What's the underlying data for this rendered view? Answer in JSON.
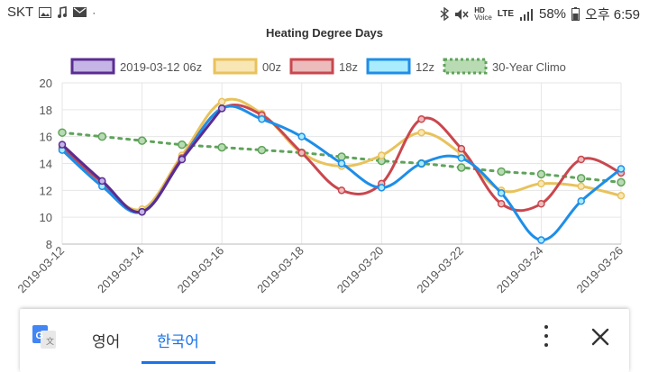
{
  "status_bar": {
    "carrier": "SKT",
    "battery": "58%",
    "time": "오후 6:59",
    "network": "LTE",
    "hd_label": "HD",
    "voice_label": "Voice"
  },
  "chart_data": {
    "type": "line",
    "title": "Heating Degree Days",
    "x_ticks": [
      "2019-03-12",
      "2019-03-14",
      "2019-03-16",
      "2019-03-18",
      "2019-03-20",
      "2019-03-22",
      "2019-03-24",
      "2019-03-26"
    ],
    "ylim": [
      8,
      20
    ],
    "y_ticks": [
      8,
      10,
      12,
      14,
      16,
      18,
      20
    ],
    "grid": true,
    "legend_position": "top",
    "x": [
      "2019-03-12",
      "2019-03-13",
      "2019-03-14",
      "2019-03-15",
      "2019-03-16",
      "2019-03-17",
      "2019-03-18",
      "2019-03-19",
      "2019-03-20",
      "2019-03-21",
      "2019-03-22",
      "2019-03-23",
      "2019-03-24",
      "2019-03-25",
      "2019-03-26"
    ],
    "series": [
      {
        "name": "2019-03-12 06z",
        "color": "#5b2c91",
        "fill": "#c5b5e6",
        "dashed": false,
        "values": [
          15.4,
          12.7,
          10.4,
          14.3,
          18.1,
          null,
          null,
          null,
          null,
          null,
          null,
          null,
          null,
          null,
          null
        ]
      },
      {
        "name": "00z",
        "color": "#e8c25c",
        "fill": "#f8e6b5",
        "dashed": false,
        "values": [
          15.2,
          12.5,
          10.6,
          14.6,
          18.6,
          17.7,
          14.8,
          13.8,
          14.6,
          16.3,
          14.7,
          12.0,
          12.5,
          12.3,
          11.6
        ]
      },
      {
        "name": "18z",
        "color": "#c9474e",
        "fill": "#ecbcbc",
        "dashed": false,
        "values": [
          15.1,
          12.6,
          10.4,
          14.4,
          18.1,
          17.6,
          14.8,
          12.0,
          12.5,
          17.3,
          15.1,
          11.0,
          11.0,
          14.3,
          13.3
        ]
      },
      {
        "name": "12z",
        "color": "#1e8ee8",
        "fill": "#a9ecfd",
        "dashed": false,
        "values": [
          15.0,
          12.3,
          10.4,
          14.3,
          18.1,
          17.3,
          16.0,
          14.0,
          12.2,
          14.0,
          14.4,
          11.8,
          8.3,
          11.2,
          13.6
        ]
      },
      {
        "name": "30-Year Climo",
        "color": "#5fa35a",
        "fill": "#b9dbb3",
        "dashed": true,
        "values": [
          16.3,
          16.0,
          15.7,
          15.4,
          15.2,
          15.0,
          14.8,
          14.5,
          14.2,
          14.0,
          13.7,
          13.4,
          13.2,
          12.9,
          12.6
        ]
      }
    ]
  },
  "translate_bar": {
    "source_lang": "영어",
    "target_lang": "한국어",
    "logo_icon": "google-translate-icon",
    "more_icon": "more-vert-icon",
    "close_icon": "close-icon"
  }
}
